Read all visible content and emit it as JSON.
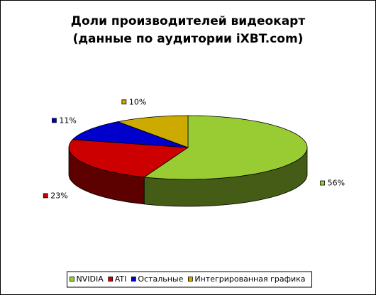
{
  "chart_data": {
    "type": "pie3d",
    "title": "Доли производителей видеокарт",
    "subtitle": "(данные по аудитории iXBT.com)",
    "categories": [
      "NVIDIA",
      "ATI",
      "Остальные",
      "Интегрированная графика"
    ],
    "values": [
      56,
      23,
      11,
      10
    ],
    "value_labels": [
      "56%",
      "23%",
      "11%",
      "10%"
    ],
    "colors": [
      "#99cc33",
      "#cc0000",
      "#0000cc",
      "#ccaa00"
    ],
    "legend": "bottom"
  }
}
